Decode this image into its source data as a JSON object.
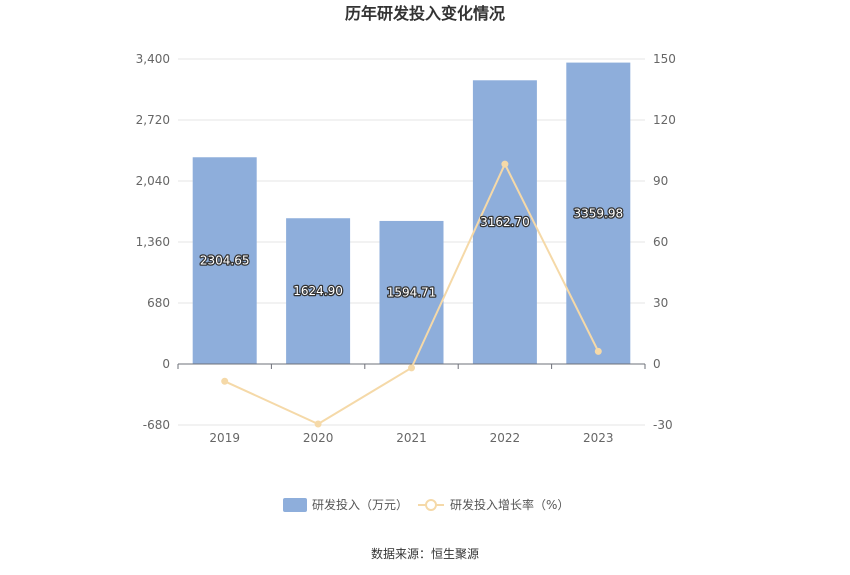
{
  "chart_data": {
    "type": "bar",
    "title": "历年研发投入变化情况",
    "categories": [
      "2019",
      "2020",
      "2021",
      "2022",
      "2023"
    ],
    "series": [
      {
        "name": "研发投入（万元）",
        "type": "bar",
        "axis": "left",
        "values": [
          2304.65,
          1624.9,
          1594.71,
          3162.7,
          3359.98
        ],
        "labels": [
          "2304.65",
          "1624.90",
          "1594.71",
          "3162.70",
          "3359.98"
        ],
        "color": "#8eaedb"
      },
      {
        "name": "研发投入增长率（%）",
        "type": "line",
        "axis": "right",
        "values": [
          -8.5,
          -29.5,
          -1.9,
          98.3,
          6.2
        ],
        "color": "#f5d9a8"
      }
    ],
    "left_axis": {
      "min": -680,
      "max": 3400,
      "ticks": [
        "3,400",
        "2,720",
        "2,040",
        "1,360",
        "680",
        "0",
        "-680"
      ]
    },
    "right_axis": {
      "min": -30,
      "max": 150,
      "ticks": [
        "150",
        "120",
        "90",
        "60",
        "30",
        "0",
        "-30"
      ]
    },
    "grid": true,
    "legend_position": "bottom"
  },
  "source": "数据来源：恒生聚源"
}
